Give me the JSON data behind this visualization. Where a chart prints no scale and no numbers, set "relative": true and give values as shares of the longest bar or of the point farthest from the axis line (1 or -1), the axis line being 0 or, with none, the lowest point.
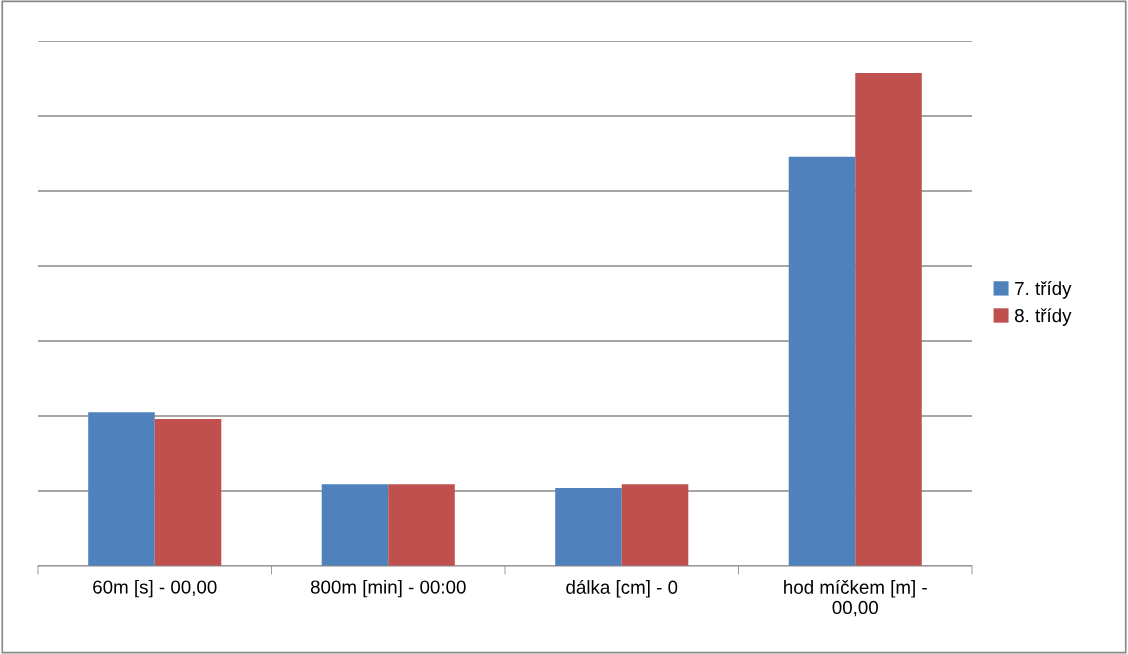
{
  "chart_data": {
    "type": "bar",
    "relative": true,
    "grid": "y",
    "legend": "right",
    "tick_labels": "x",
    "categories": [
      "60m [s] - 00,00",
      "800m [min] - 00:00",
      "dálka [cm] - 0",
      "hod míčkem [m] -\n00,00"
    ],
    "series": [
      {
        "name": "7. třídy",
        "color": "#4f81bd",
        "values": [
          0.312,
          0.166,
          0.158,
          0.83
        ]
      },
      {
        "name": "8. třídy",
        "color": "#c0504d",
        "values": [
          0.298,
          0.166,
          0.166,
          1.0
        ]
      }
    ]
  }
}
